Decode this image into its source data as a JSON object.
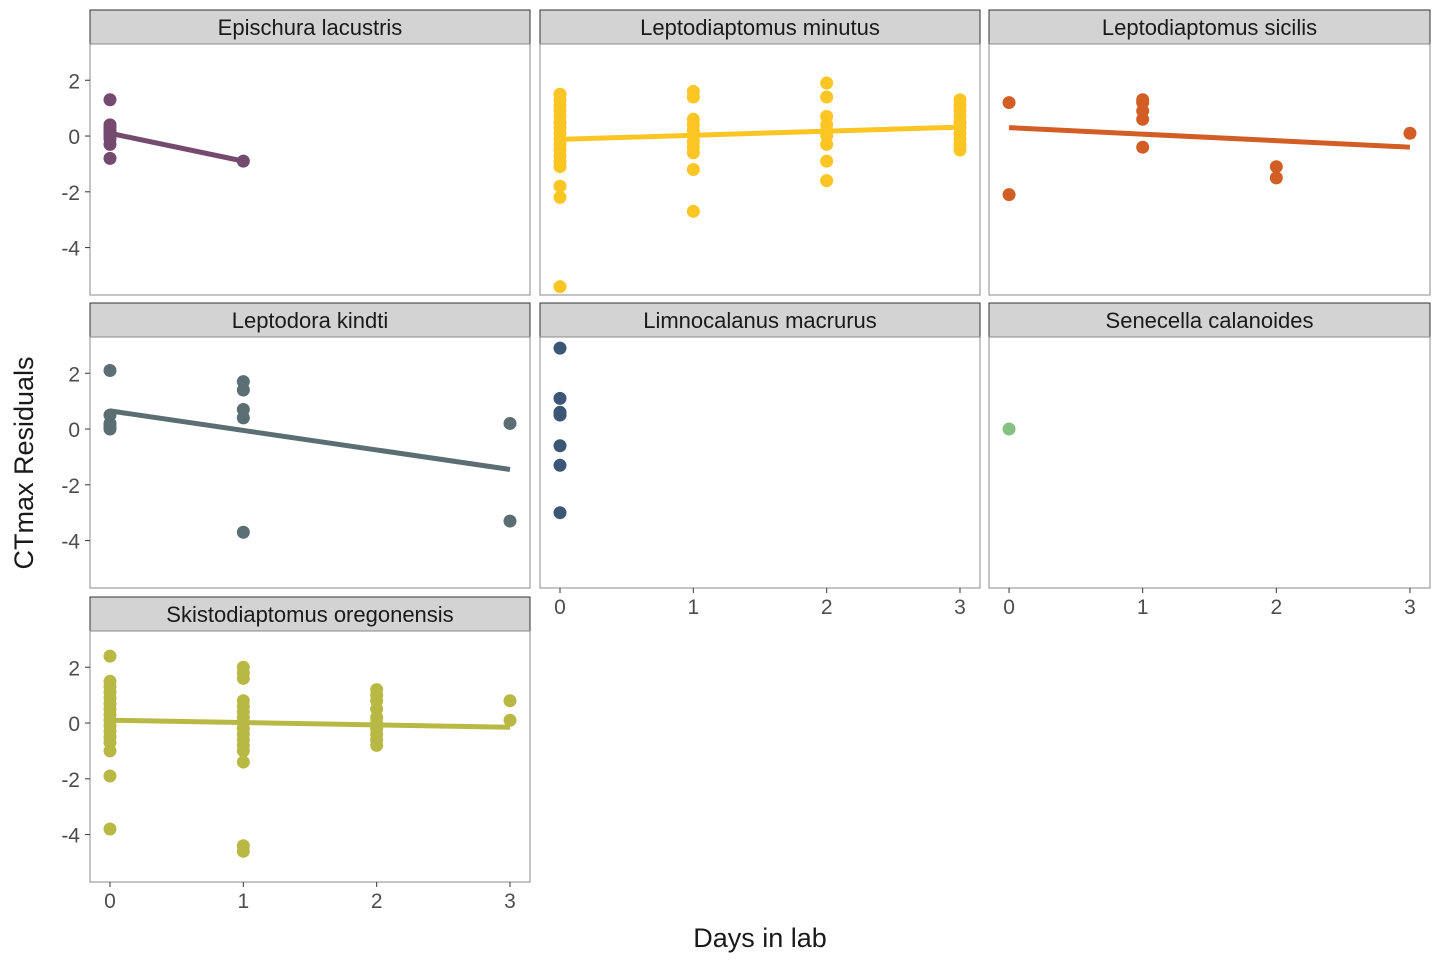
{
  "chart_data": {
    "type": "scatter",
    "facet_layout": "3 columns",
    "xlabel": "Days in lab",
    "ylabel": "CTmax Residuals",
    "xlim": [
      -0.15,
      3.15
    ],
    "ylim": [
      -5.7,
      3.3
    ],
    "x_ticks": [
      0,
      1,
      2,
      3
    ],
    "y_ticks": [
      2,
      0,
      -2,
      -4
    ],
    "y_tick_labels": [
      "2",
      "0",
      "-2",
      "-4"
    ],
    "grid": false,
    "legend": "none",
    "strip_fill": "#d3d3d3",
    "panel_border": "#888888",
    "facets": [
      {
        "title": "Epischura lacustris",
        "color": "#744a6e",
        "points": [
          [
            0,
            1.3
          ],
          [
            0,
            0.4
          ],
          [
            0,
            0.3
          ],
          [
            0,
            0.2
          ],
          [
            0,
            0.1
          ],
          [
            0,
            0.0
          ],
          [
            0,
            -0.1
          ],
          [
            0,
            -0.3
          ],
          [
            0,
            -0.8
          ],
          [
            1,
            -0.9
          ]
        ],
        "trend": [
          [
            0,
            0.1
          ],
          [
            1,
            -0.9
          ]
        ]
      },
      {
        "title": "Leptodiaptomus minutus",
        "color": "#fbc623",
        "points": [
          [
            0,
            1.5
          ],
          [
            0,
            1.3
          ],
          [
            0,
            1.1
          ],
          [
            0,
            0.9
          ],
          [
            0,
            0.7
          ],
          [
            0,
            0.5
          ],
          [
            0,
            0.3
          ],
          [
            0,
            0.1
          ],
          [
            0,
            -0.1
          ],
          [
            0,
            -0.3
          ],
          [
            0,
            -0.5
          ],
          [
            0,
            -0.7
          ],
          [
            0,
            -0.9
          ],
          [
            0,
            -1.1
          ],
          [
            0,
            -1.8
          ],
          [
            0,
            -2.2
          ],
          [
            0,
            -5.4
          ],
          [
            1,
            1.6
          ],
          [
            1,
            1.4
          ],
          [
            1,
            0.6
          ],
          [
            1,
            0.4
          ],
          [
            1,
            0.2
          ],
          [
            1,
            0.0
          ],
          [
            1,
            -0.2
          ],
          [
            1,
            -0.4
          ],
          [
            1,
            -0.6
          ],
          [
            1,
            -1.2
          ],
          [
            1,
            -2.7
          ],
          [
            2,
            1.9
          ],
          [
            2,
            1.4
          ],
          [
            2,
            0.7
          ],
          [
            2,
            0.4
          ],
          [
            2,
            0.2
          ],
          [
            2,
            0.0
          ],
          [
            2,
            -0.3
          ],
          [
            2,
            -0.9
          ],
          [
            2,
            -1.6
          ],
          [
            3,
            1.3
          ],
          [
            3,
            1.1
          ],
          [
            3,
            0.9
          ],
          [
            3,
            0.7
          ],
          [
            3,
            0.5
          ],
          [
            3,
            0.3
          ],
          [
            3,
            0.1
          ],
          [
            3,
            -0.1
          ],
          [
            3,
            -0.3
          ],
          [
            3,
            -0.5
          ]
        ],
        "trend": [
          [
            0,
            -0.12
          ],
          [
            3,
            0.32
          ]
        ]
      },
      {
        "title": "Leptodiaptomus sicilis",
        "color": "#d25d25",
        "points": [
          [
            0,
            1.2
          ],
          [
            0,
            -2.1
          ],
          [
            1,
            1.3
          ],
          [
            1,
            1.2
          ],
          [
            1,
            0.9
          ],
          [
            1,
            0.6
          ],
          [
            1,
            -0.4
          ],
          [
            2,
            -1.1
          ],
          [
            2,
            -1.5
          ],
          [
            3,
            0.1
          ]
        ],
        "trend": [
          [
            0,
            0.3
          ],
          [
            3,
            -0.4
          ]
        ]
      },
      {
        "title": "Leptodora kindti",
        "color": "#5a6e74",
        "points": [
          [
            0,
            2.1
          ],
          [
            0,
            0.5
          ],
          [
            0,
            0.2
          ],
          [
            0,
            0.1
          ],
          [
            0,
            0.0
          ],
          [
            1,
            1.7
          ],
          [
            1,
            1.4
          ],
          [
            1,
            0.7
          ],
          [
            1,
            0.4
          ],
          [
            1,
            -3.7
          ],
          [
            3,
            0.2
          ],
          [
            3,
            -3.3
          ]
        ],
        "trend": [
          [
            0,
            0.65
          ],
          [
            3,
            -1.45
          ]
        ]
      },
      {
        "title": "Limnocalanus macrurus",
        "color": "#3b5773",
        "points": [
          [
            0,
            2.9
          ],
          [
            0,
            1.1
          ],
          [
            0,
            0.6
          ],
          [
            0,
            0.5
          ],
          [
            0,
            -0.6
          ],
          [
            0,
            -1.3
          ],
          [
            0,
            -3.0
          ]
        ],
        "trend": null
      },
      {
        "title": "Senecella calanoides",
        "color": "#85c281",
        "points": [
          [
            0,
            0.0
          ]
        ],
        "trend": null
      },
      {
        "title": "Skistodiaptomus oregonensis",
        "color": "#b8b944",
        "points": [
          [
            0,
            2.4
          ],
          [
            0,
            1.5
          ],
          [
            0,
            1.3
          ],
          [
            0,
            1.1
          ],
          [
            0,
            0.9
          ],
          [
            0,
            0.7
          ],
          [
            0,
            0.5
          ],
          [
            0,
            0.3
          ],
          [
            0,
            0.1
          ],
          [
            0,
            -0.1
          ],
          [
            0,
            -0.3
          ],
          [
            0,
            -0.5
          ],
          [
            0,
            -0.7
          ],
          [
            0,
            -1.0
          ],
          [
            0,
            -1.9
          ],
          [
            0,
            -3.8
          ],
          [
            1,
            2.0
          ],
          [
            1,
            1.8
          ],
          [
            1,
            1.6
          ],
          [
            1,
            0.8
          ],
          [
            1,
            0.6
          ],
          [
            1,
            0.4
          ],
          [
            1,
            0.2
          ],
          [
            1,
            0.0
          ],
          [
            1,
            -0.2
          ],
          [
            1,
            -0.4
          ],
          [
            1,
            -0.6
          ],
          [
            1,
            -0.8
          ],
          [
            1,
            -1.0
          ],
          [
            1,
            -1.4
          ],
          [
            1,
            -4.4
          ],
          [
            1,
            -4.6
          ],
          [
            2,
            1.2
          ],
          [
            2,
            1.0
          ],
          [
            2,
            0.8
          ],
          [
            2,
            0.5
          ],
          [
            2,
            0.2
          ],
          [
            2,
            0.0
          ],
          [
            2,
            -0.2
          ],
          [
            2,
            -0.4
          ],
          [
            2,
            -0.6
          ],
          [
            2,
            -0.8
          ],
          [
            3,
            0.8
          ],
          [
            3,
            0.1
          ]
        ],
        "trend": [
          [
            0,
            0.1
          ],
          [
            3,
            -0.15
          ]
        ]
      }
    ]
  }
}
